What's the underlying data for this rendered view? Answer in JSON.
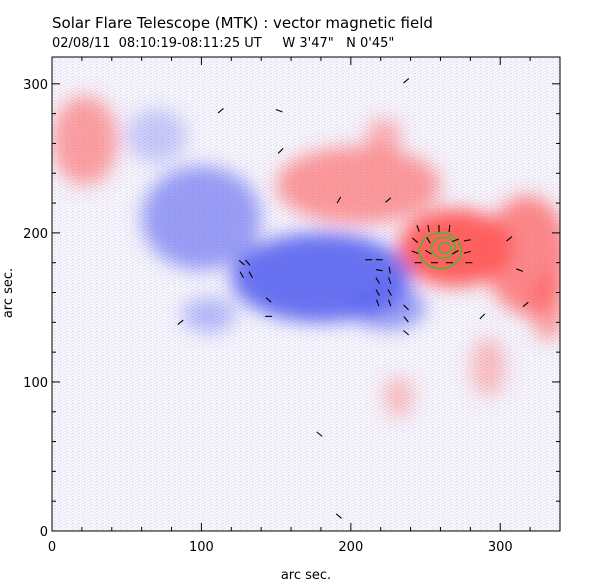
{
  "header": {
    "title": "Solar Flare Telescope (MTK) : vector magnetic field",
    "subtitle": "02/08/11  08:10:19-08:11:25 UT     W 3'47\"   N 0'45\""
  },
  "colors": {
    "positive": "#ff5a5a",
    "negative": "#5a64f0",
    "contour": "#22cc22",
    "vector": "#000000"
  },
  "chart_data": {
    "type": "heatmap",
    "title": "Solar Flare Telescope (MTK) : vector magnetic field",
    "xlabel": "arc sec.",
    "ylabel": "arc sec.",
    "xlim": [
      0,
      340
    ],
    "ylim": [
      0,
      318
    ],
    "xticks": [
      0,
      100,
      200,
      300
    ],
    "yticks": [
      0,
      100,
      200,
      300
    ],
    "xtick_labels": [
      "0",
      "100",
      "200",
      "300"
    ],
    "ytick_labels": [
      "0",
      "100",
      "200",
      "300"
    ],
    "grid": false,
    "polarity_regions": [
      {
        "polarity": "positive",
        "cx": 22,
        "cy": 262,
        "rx": 22,
        "ry": 30,
        "strength": 0.55
      },
      {
        "polarity": "positive",
        "cx": 205,
        "cy": 232,
        "rx": 55,
        "ry": 26,
        "strength": 0.6
      },
      {
        "polarity": "positive",
        "cx": 222,
        "cy": 265,
        "rx": 12,
        "ry": 12,
        "strength": 0.45
      },
      {
        "polarity": "positive",
        "cx": 270,
        "cy": 190,
        "rx": 38,
        "ry": 26,
        "strength": 0.95
      },
      {
        "polarity": "positive",
        "cx": 318,
        "cy": 185,
        "rx": 28,
        "ry": 40,
        "strength": 0.7
      },
      {
        "polarity": "positive",
        "cx": 332,
        "cy": 150,
        "rx": 12,
        "ry": 22,
        "strength": 0.55
      },
      {
        "polarity": "positive",
        "cx": 292,
        "cy": 110,
        "rx": 12,
        "ry": 20,
        "strength": 0.35
      },
      {
        "polarity": "positive",
        "cx": 232,
        "cy": 90,
        "rx": 10,
        "ry": 14,
        "strength": 0.35
      },
      {
        "polarity": "negative",
        "cx": 100,
        "cy": 210,
        "rx": 40,
        "ry": 35,
        "strength": 0.6
      },
      {
        "polarity": "negative",
        "cx": 180,
        "cy": 170,
        "rx": 60,
        "ry": 30,
        "strength": 0.9
      },
      {
        "polarity": "negative",
        "cx": 225,
        "cy": 150,
        "rx": 25,
        "ry": 15,
        "strength": 0.6
      },
      {
        "polarity": "negative",
        "cx": 105,
        "cy": 145,
        "rx": 18,
        "ry": 12,
        "strength": 0.4
      },
      {
        "polarity": "negative",
        "cx": 70,
        "cy": 265,
        "rx": 20,
        "ry": 18,
        "strength": 0.3
      }
    ],
    "contours": [
      {
        "cx": 260,
        "cy": 188,
        "rx": 14,
        "ry": 12
      },
      {
        "cx": 262,
        "cy": 190,
        "rx": 8,
        "ry": 7
      },
      {
        "cx": 263,
        "cy": 190,
        "rx": 4,
        "ry": 3.5
      }
    ],
    "vectors": [
      {
        "x": 113,
        "y": 282,
        "angle": 40
      },
      {
        "x": 152,
        "y": 282,
        "angle": -20
      },
      {
        "x": 153,
        "y": 255,
        "angle": 45
      },
      {
        "x": 237,
        "y": 302,
        "angle": 40
      },
      {
        "x": 192,
        "y": 222,
        "angle": 60
      },
      {
        "x": 225,
        "y": 222,
        "angle": 40
      },
      {
        "x": 245,
        "y": 203,
        "angle": -70
      },
      {
        "x": 252,
        "y": 203,
        "angle": -80
      },
      {
        "x": 259,
        "y": 203,
        "angle": 90
      },
      {
        "x": 266,
        "y": 203,
        "angle": 85
      },
      {
        "x": 243,
        "y": 195,
        "angle": -40
      },
      {
        "x": 252,
        "y": 195,
        "angle": -60
      },
      {
        "x": 270,
        "y": 195,
        "angle": 20
      },
      {
        "x": 278,
        "y": 195,
        "angle": 10
      },
      {
        "x": 243,
        "y": 187,
        "angle": -20
      },
      {
        "x": 252,
        "y": 187,
        "angle": -30
      },
      {
        "x": 270,
        "y": 187,
        "angle": 30
      },
      {
        "x": 278,
        "y": 187,
        "angle": 15
      },
      {
        "x": 245,
        "y": 180,
        "angle": 0
      },
      {
        "x": 256,
        "y": 180,
        "angle": 0
      },
      {
        "x": 266,
        "y": 180,
        "angle": 0
      },
      {
        "x": 279,
        "y": 180,
        "angle": 0
      },
      {
        "x": 306,
        "y": 196,
        "angle": 40
      },
      {
        "x": 313,
        "y": 175,
        "angle": -20
      },
      {
        "x": 127,
        "y": 180,
        "angle": -40
      },
      {
        "x": 131,
        "y": 180,
        "angle": -50
      },
      {
        "x": 127,
        "y": 172,
        "angle": -60
      },
      {
        "x": 133,
        "y": 172,
        "angle": -60
      },
      {
        "x": 145,
        "y": 155,
        "angle": -40
      },
      {
        "x": 145,
        "y": 144,
        "angle": 0
      },
      {
        "x": 86,
        "y": 140,
        "angle": 40
      },
      {
        "x": 212,
        "y": 182,
        "angle": 0
      },
      {
        "x": 219,
        "y": 182,
        "angle": 0
      },
      {
        "x": 219,
        "y": 175,
        "angle": -10
      },
      {
        "x": 226,
        "y": 175,
        "angle": -80
      },
      {
        "x": 218,
        "y": 168,
        "angle": -60
      },
      {
        "x": 226,
        "y": 168,
        "angle": -70
      },
      {
        "x": 218,
        "y": 160,
        "angle": -60
      },
      {
        "x": 226,
        "y": 160,
        "angle": -60
      },
      {
        "x": 218,
        "y": 153,
        "angle": -70
      },
      {
        "x": 226,
        "y": 153,
        "angle": -70
      },
      {
        "x": 237,
        "y": 150,
        "angle": -45
      },
      {
        "x": 237,
        "y": 142,
        "angle": -50
      },
      {
        "x": 237,
        "y": 133,
        "angle": -40
      },
      {
        "x": 288,
        "y": 144,
        "angle": 45
      },
      {
        "x": 317,
        "y": 152,
        "angle": 40
      },
      {
        "x": 179,
        "y": 65,
        "angle": -40
      },
      {
        "x": 192,
        "y": 10,
        "angle": -40
      }
    ]
  }
}
